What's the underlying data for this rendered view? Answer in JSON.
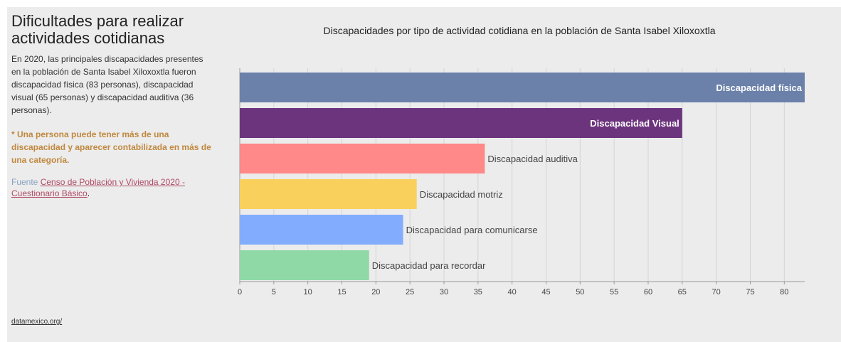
{
  "sidebar": {
    "title": "Dificultades para realizar actividades cotidianas",
    "description": "En 2020, las principales discapacidades presentes en la población de Santa Isabel Xiloxoxtla fueron discapacidad física (83 personas), discapacidad visual (65 personas) y discapacidad auditiva (36 personas).",
    "note": "* Una persona puede tener más de una discapacidad y aparecer contabilizada en más de una categoría.",
    "source_label": "Fuente",
    "source_link": "Censo de Población y Vivienda 2020 - Cuestionario Básico",
    "source_end": "."
  },
  "footer": {
    "link": "datamexico.org/"
  },
  "colors": {
    "background": "#ececec",
    "grid": "#d4d4d4",
    "label_inside": "#ffffff",
    "label_outside": "#444444"
  },
  "chart_data": {
    "type": "bar",
    "orientation": "horizontal",
    "title": "Discapacidades por tipo de actividad cotidiana en la población de Santa Isabel Xiloxoxtla",
    "categories": [
      "Discapacidad física",
      "Discapacidad Visual",
      "Discapacidad auditiva",
      "Discapacidad motriz",
      "Discapacidad para comunicarse",
      "Discapacidad para recordar"
    ],
    "values": [
      83,
      65,
      36,
      26,
      24,
      19
    ],
    "bar_colors": [
      "#6b81aa",
      "#6d347e",
      "#ff8888",
      "#fad05c",
      "#82adff",
      "#8fd9a6"
    ],
    "label_inside": [
      true,
      true,
      false,
      false,
      false,
      false
    ],
    "xlim": [
      0,
      83
    ],
    "xticks": [
      0,
      5,
      10,
      15,
      20,
      25,
      30,
      35,
      40,
      45,
      50,
      55,
      60,
      65,
      70,
      75,
      80
    ],
    "grid": true,
    "xlabel": "",
    "ylabel": ""
  }
}
